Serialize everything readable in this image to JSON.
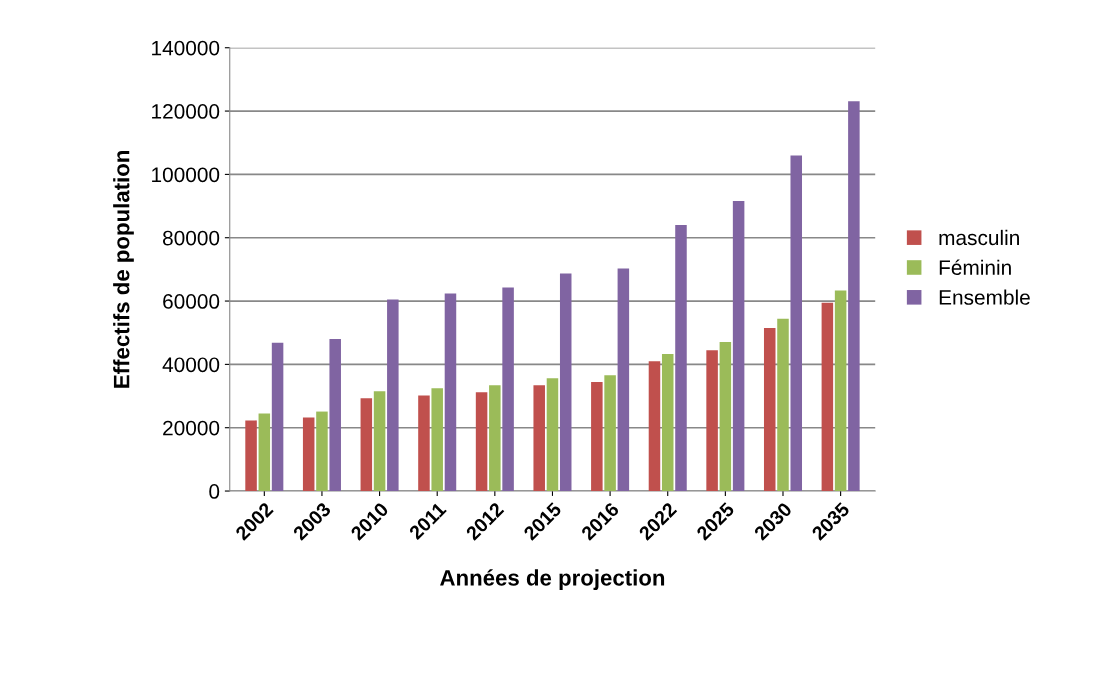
{
  "chart_data": {
    "type": "bar",
    "xlabel": "Années de projection",
    "ylabel": "Effectifs de population",
    "categories": [
      "2002",
      "2003",
      "2010",
      "2011",
      "2012",
      "2015",
      "2016",
      "2022",
      "2025",
      "2030",
      "2035"
    ],
    "series": [
      {
        "name": "masculin",
        "color": "#c0504d",
        "values": [
          22300,
          23200,
          29300,
          30200,
          31200,
          33400,
          34400,
          41000,
          44500,
          51500,
          59500
        ]
      },
      {
        "name": "Féminin",
        "color": "#9bbb59",
        "values": [
          24500,
          25100,
          31500,
          32500,
          33400,
          35600,
          36600,
          43300,
          47100,
          54400,
          63300
        ]
      },
      {
        "name": "Ensemble",
        "color": "#8064a2",
        "values": [
          46800,
          48000,
          60500,
          62400,
          64300,
          68700,
          70300,
          84000,
          91600,
          106000,
          123100
        ]
      }
    ],
    "ylim": [
      0,
      140000
    ],
    "yticks": [
      0,
      20000,
      40000,
      60000,
      80000,
      100000,
      120000,
      140000
    ],
    "grid": "y",
    "legend": "right"
  }
}
